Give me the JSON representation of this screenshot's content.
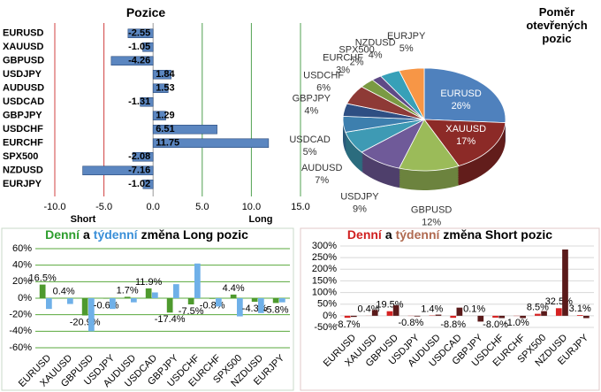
{
  "chart_data": [
    {
      "type": "bar",
      "orientation": "horizontal",
      "title": "Pozice",
      "categories": [
        "EURUSD",
        "XAUUSD",
        "GBPUSD",
        "USDJPY",
        "AUDUSD",
        "USDCAD",
        "GBPJPY",
        "USDCHF",
        "EURCHF",
        "SPX500",
        "NZDUSD",
        "EURJPY"
      ],
      "values": [
        -2.55,
        -1.05,
        -4.26,
        1.84,
        1.53,
        -1.31,
        1.29,
        6.51,
        11.75,
        -2.08,
        -7.16,
        -1.02
      ],
      "color": "#5b86c0",
      "xlim": [
        -10,
        15
      ],
      "xticks": [
        {
          "value": -10,
          "label": "-10.0"
        },
        {
          "value": -5,
          "label": "-5.0"
        },
        {
          "value": 0,
          "label": "0.0"
        },
        {
          "value": 5,
          "label": "5.0"
        },
        {
          "value": 10,
          "label": "10.0"
        },
        {
          "value": 15,
          "label": "15.0"
        }
      ],
      "grid": true,
      "annotations": [
        "Short",
        "Long"
      ]
    },
    {
      "type": "pie",
      "title": "Poměr otevřených pozic",
      "categories": [
        "EURUSD",
        "XAUUSD",
        "GBPUSD",
        "USDJPY",
        "AUDUSD",
        "USDCAD",
        "GBPJPY",
        "USDCHF",
        "EURCHF",
        "SPX500",
        "NZDUSD",
        "EURJPY"
      ],
      "values": [
        26,
        17,
        12,
        9,
        7,
        5,
        4,
        6,
        3,
        2,
        4,
        5
      ],
      "value_labels": [
        "26%",
        "17%",
        "12%",
        "9%",
        "7%",
        "5%",
        "4%",
        "6%",
        "3%",
        "2%",
        "4%",
        "5%"
      ],
      "colors": [
        "#4f81bd",
        "#8c2a27",
        "#9bbb59",
        "#6f5a99",
        "#3e9ab4",
        "#3d7fae",
        "#2e4f83",
        "#8e3a36",
        "#7a9a43",
        "#5e4a86",
        "#37a0b8",
        "#f79646"
      ]
    },
    {
      "type": "bar",
      "title": [
        "Denní",
        "a",
        "týdenní",
        "změna Long pozic"
      ],
      "title_colors": [
        "#2e9e2e",
        "#000000",
        "#3a8fd8",
        "#000000"
      ],
      "categories": [
        "EURUSD",
        "XAUUSD",
        "GBPUSD",
        "USDJPY",
        "AUDUSD",
        "USDCAD",
        "GBPJPY",
        "USDCHF",
        "EURCHF",
        "SPX500",
        "NZDUSD",
        "EURJPY"
      ],
      "series": [
        {
          "color": "#4e9a2e",
          "values": [
            16.5,
            0.4,
            -20.9,
            -0.6,
            1.7,
            11.9,
            -17.4,
            -7.5,
            -0.8,
            4.4,
            -4.3,
            -5.8
          ],
          "value_labels": [
            "16.5%",
            "0.4%",
            "-20.9%",
            "-0.6%",
            "1.7%",
            "11.9%",
            "-17.4%",
            "-7.5%",
            "-0.8%",
            "4.4%",
            "-4.3%",
            "-5.8%"
          ]
        },
        {
          "color": "#6fb0e8",
          "values": [
            -13,
            -7,
            -40,
            -13,
            -5,
            7,
            17,
            42,
            -10,
            -22,
            -18,
            -5
          ]
        }
      ],
      "ylim": [
        -60,
        60
      ],
      "yticks": [
        {
          "value": -60,
          "label": "-60%"
        },
        {
          "value": -40,
          "label": "-40%"
        },
        {
          "value": -20,
          "label": "-20%"
        },
        {
          "value": 0,
          "label": "0%"
        },
        {
          "value": 20,
          "label": "20%"
        },
        {
          "value": 40,
          "label": "40%"
        },
        {
          "value": 60,
          "label": "60%"
        }
      ],
      "grid": true,
      "grid_color": "#5aa83c"
    },
    {
      "type": "bar",
      "title": [
        "Denní",
        "a",
        "týdenní",
        "změna Short pozic"
      ],
      "title_colors": [
        "#d02020",
        "#000000",
        "#b06a50",
        "#000000"
      ],
      "categories": [
        "EURUSD",
        "XAUUSD",
        "GBPUSD",
        "USDJPY",
        "AUDUSD",
        "USDCAD",
        "GBPJPY",
        "USDCHF",
        "EURCHF",
        "SPX500",
        "NZDUSD",
        "EURJPY"
      ],
      "series": [
        {
          "color": "#d62222",
          "values": [
            -8.7,
            0.4,
            19.5,
            -0.8,
            1.4,
            -8.8,
            0.1,
            -8.0,
            -1.0,
            8.5,
            32.5,
            3.1
          ],
          "value_labels": [
            "-8.7%",
            "0.4%",
            "19.5%",
            "-0.8%",
            "1.4%",
            "-8.8%",
            "0.1%",
            "-8.0%",
            "-1.0%",
            "8.5%",
            "32.5%",
            "3.1%"
          ]
        },
        {
          "color": "#5a1a1a",
          "values": [
            -5,
            25,
            45,
            -3,
            5,
            35,
            -25,
            -10,
            -10,
            20,
            285,
            -10
          ]
        }
      ],
      "ylim": [
        -50,
        300
      ],
      "yticks": [
        {
          "value": -50,
          "label": "-50%"
        },
        {
          "value": 0,
          "label": "0%"
        },
        {
          "value": 50,
          "label": "50%"
        },
        {
          "value": 100,
          "label": "100%"
        },
        {
          "value": 150,
          "label": "150%"
        },
        {
          "value": 200,
          "label": "200%"
        },
        {
          "value": 250,
          "label": "250%"
        },
        {
          "value": 300,
          "label": "300%"
        }
      ],
      "grid": true,
      "grid_color": "#d8d8d8"
    }
  ]
}
